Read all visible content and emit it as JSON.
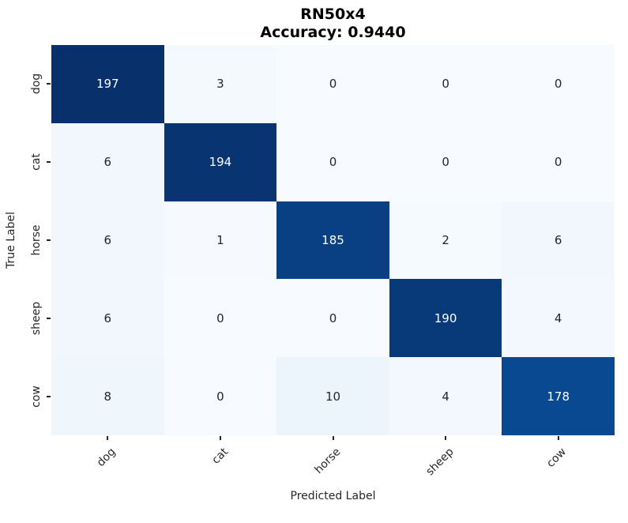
{
  "title": "RN50x4",
  "subtitle": "Accuracy: 0.9440",
  "chart_data": {
    "type": "heatmap",
    "title": "RN50x4",
    "subtitle": "Accuracy: 0.9440",
    "xlabel": "Predicted Label",
    "ylabel": "True Label",
    "x_categories": [
      "dog",
      "cat",
      "horse",
      "sheep",
      "cow"
    ],
    "y_categories": [
      "dog",
      "cat",
      "horse",
      "sheep",
      "cow"
    ],
    "matrix": [
      [
        197,
        3,
        0,
        0,
        0
      ],
      [
        6,
        194,
        0,
        0,
        0
      ],
      [
        6,
        1,
        185,
        2,
        6
      ],
      [
        6,
        0,
        0,
        190,
        4
      ],
      [
        8,
        0,
        10,
        4,
        178
      ]
    ],
    "vmin": 0,
    "vmax": 197,
    "colormap": "Blues",
    "colormap_stops": [
      "#f7fbff",
      "#deebf7",
      "#c6dbef",
      "#9ecae1",
      "#6baed6",
      "#4292c6",
      "#2171b5",
      "#08519c",
      "#08306b"
    ],
    "annotation_color_dark_cells": "#ffffff",
    "annotation_color_light_cells": "#262626",
    "tick_color": "#262626",
    "legend": "none",
    "grid": false,
    "colorbar": false
  }
}
